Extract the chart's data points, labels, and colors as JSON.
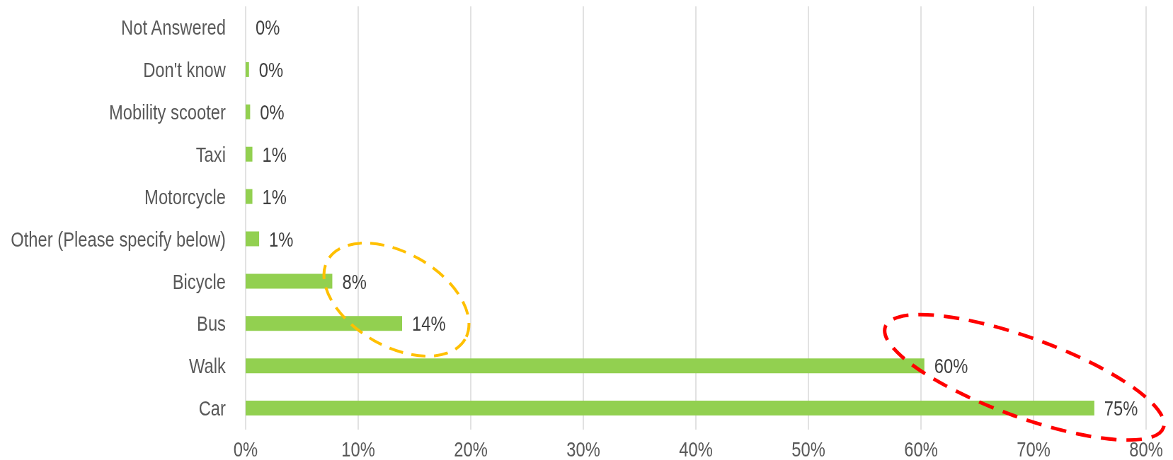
{
  "chart_data": {
    "type": "bar",
    "orientation": "horizontal",
    "categories": [
      "Not Answered",
      "Don't know",
      "Mobility scooter",
      "Taxi",
      "Motorcycle",
      "Other (Please specify below)",
      "Bicycle",
      "Bus",
      "Walk",
      "Car"
    ],
    "values": [
      0,
      0.3,
      0.4,
      0.6,
      0.6,
      1.2,
      7.7,
      13.9,
      60.3,
      75.4
    ],
    "value_labels": [
      "0%",
      "0%",
      "0%",
      "1%",
      "1%",
      "1%",
      "8%",
      "14%",
      "60%",
      "75%"
    ],
    "color": "#92d050",
    "xlim": [
      0,
      80
    ],
    "xticks": [
      {
        "value": 0,
        "label": "0%"
      },
      {
        "value": 10,
        "label": "10%"
      },
      {
        "value": 20,
        "label": "20%"
      },
      {
        "value": 30,
        "label": "30%"
      },
      {
        "value": 40,
        "label": "40%"
      },
      {
        "value": 50,
        "label": "50%"
      },
      {
        "value": 60,
        "label": "60%"
      },
      {
        "value": 70,
        "label": "70%"
      },
      {
        "value": 80,
        "label": "80%"
      }
    ],
    "grid": "x"
  }
}
